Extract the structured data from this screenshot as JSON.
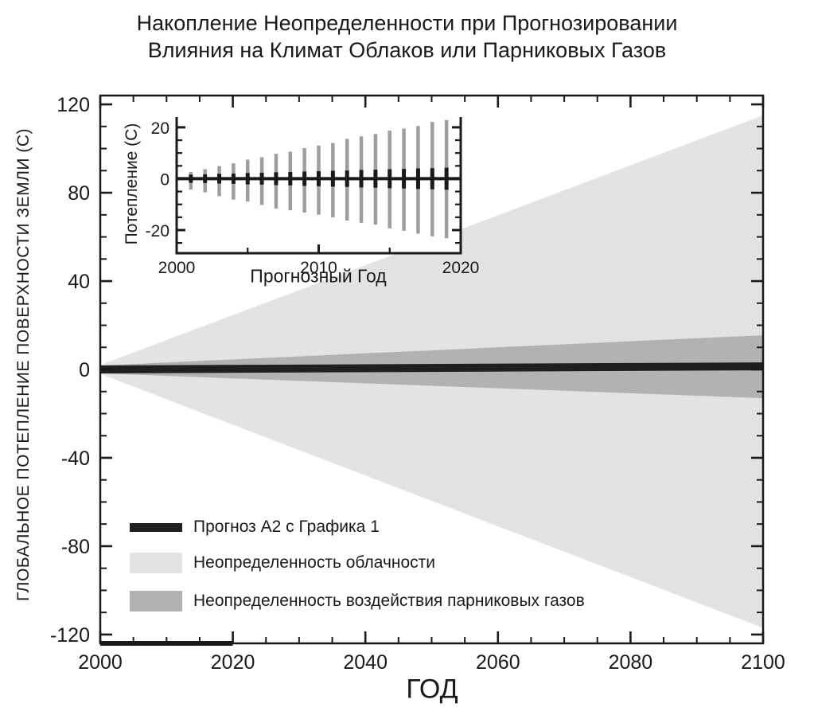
{
  "title": {
    "line1": "Накопление Неопределенности при Прогнозировании",
    "line2": "Влияния на Климат Облаков или Парниковых Газов"
  },
  "colors": {
    "ink": "#1a1a1a",
    "background": "#ffffff",
    "cloud_fan": "#e3e3e3",
    "ghg_fan": "#b2b2b2",
    "projection_band": "#1f1f1f",
    "inset_outer_bar": "#9e9e9e",
    "inset_inner_bar": "#1a1a1a"
  },
  "legend": {
    "items": [
      {
        "label": "Прогноз А2 с Графика 1",
        "swatch": "line",
        "color": "#1f1f1f"
      },
      {
        "label": "Неопределенность облачности",
        "swatch": "box",
        "color": "#e3e3e3"
      },
      {
        "label": "Неопределенность воздействия парниковых газов",
        "swatch": "box",
        "color": "#b2b2b2"
      }
    ]
  },
  "chart_data": {
    "main": {
      "type": "area",
      "title": "",
      "xlabel": "ГОД",
      "ylabel": "ГЛОБАЛЬНОЕ ПОТЕПЛЕНИЕ ПОВЕРХНОСТИ ЗЕМЛИ (C)",
      "xlim": [
        2000,
        2100
      ],
      "ylim": [
        -124,
        124
      ],
      "x_tick_major": 20,
      "x_tick_minor": 5,
      "y_tick_major": 40,
      "y_tick_minor": 10,
      "grid": false,
      "legend_position": "lower-left-inside",
      "emphasized_x_span": [
        2000,
        2020
      ],
      "series": [
        {
          "name": "Неопределенность облачности",
          "color": "#e3e3e3",
          "band": {
            "x": [
              2000,
              2100
            ],
            "upper": [
              2,
              115
            ],
            "lower": [
              -2,
              -117
            ]
          }
        },
        {
          "name": "Неопределенность воздействия парниковых газов",
          "color": "#b2b2b2",
          "band": {
            "x": [
              2000,
              2100
            ],
            "upper": [
              1.8,
              15.5
            ],
            "lower": [
              -1.8,
              -13
            ]
          }
        },
        {
          "name": "Прогноз А2 с Графика 1",
          "color": "#1f1f1f",
          "band": {
            "x": [
              2000,
              2100
            ],
            "upper": [
              1.8,
              3.2
            ],
            "lower": [
              -1.8,
              -0.4
            ]
          }
        }
      ]
    },
    "inset": {
      "type": "errorbar",
      "xlabel": "Прогнозный Год",
      "ylabel": "Потепление (C)",
      "xlim": [
        2000,
        2020
      ],
      "ylim": [
        -29,
        24
      ],
      "x_tick_major": 10,
      "x_tick_minor": 5,
      "y_tick_major": 20,
      "y_tick_minor": 5,
      "baseline": 0,
      "years": [
        2001,
        2002,
        2003,
        2004,
        2005,
        2006,
        2007,
        2008,
        2009,
        2010,
        2011,
        2012,
        2013,
        2014,
        2015,
        2016,
        2017,
        2018,
        2019
      ],
      "outer_hi": [
        2.6,
        3.7,
        4.9,
        6.0,
        7.4,
        8.4,
        9.7,
        10.5,
        11.9,
        12.9,
        13.9,
        15.5,
        16.5,
        17.4,
        18.7,
        19.5,
        20.5,
        22.1,
        22.8
      ],
      "outer_lo": [
        -4.2,
        -5.3,
        -6.8,
        -8.1,
        -8.9,
        -10.2,
        -11.6,
        -12.3,
        -13.2,
        -14.0,
        -15.0,
        -16.3,
        -17.2,
        -17.9,
        -19.3,
        -20.3,
        -21.4,
        -22.4,
        -23.2
      ],
      "inner_hi": [
        1.6,
        1.7,
        1.9,
        2.0,
        2.2,
        2.3,
        2.5,
        2.6,
        2.8,
        2.9,
        3.1,
        3.2,
        3.4,
        3.5,
        3.7,
        3.8,
        4.0,
        4.1,
        4.3
      ],
      "inner_lo": [
        -1.6,
        -1.7,
        -1.9,
        -2.0,
        -2.2,
        -2.3,
        -2.5,
        -2.6,
        -2.8,
        -2.9,
        -3.1,
        -3.2,
        -3.4,
        -3.5,
        -3.7,
        -3.8,
        -4.0,
        -4.1,
        -4.3
      ],
      "outer_color": "#9e9e9e",
      "inner_color": "#1a1a1a"
    }
  }
}
